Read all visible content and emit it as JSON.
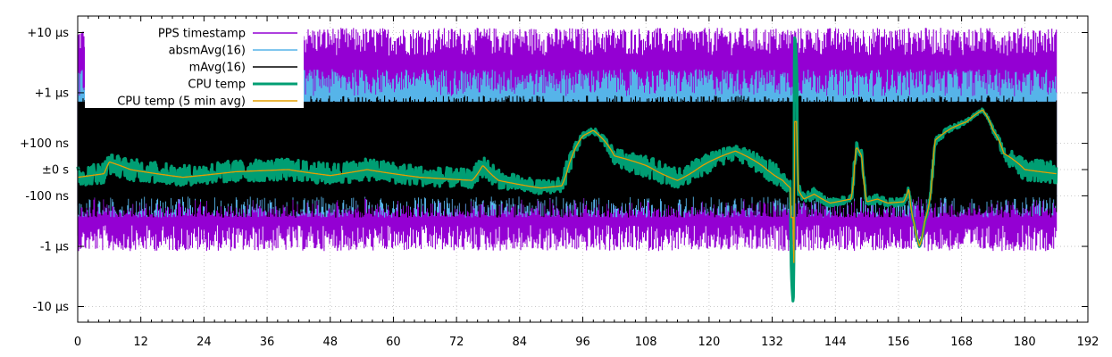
{
  "chart_data": {
    "type": "line",
    "title": "",
    "xlabel": "",
    "ylabel": "",
    "xlim": [
      0,
      192
    ],
    "x_ticks": [
      0,
      12,
      24,
      36,
      48,
      60,
      72,
      84,
      96,
      108,
      120,
      132,
      144,
      156,
      168,
      180,
      192
    ],
    "y_scale": "symmetric-log",
    "y_ticks": [
      {
        "label": "+10 µs",
        "value_ns": 10000
      },
      {
        "label": "+1 µs",
        "value_ns": 1000
      },
      {
        "label": "+100 ns",
        "value_ns": 100
      },
      {
        "label": "±0 s",
        "value_ns": 0
      },
      {
        "label": "-100 ns",
        "value_ns": -100
      },
      {
        "label": "-1 µs",
        "value_ns": -1000
      },
      {
        "label": "-10 µs",
        "value_ns": -10000
      }
    ],
    "grid": true,
    "legend_position": "top-left",
    "series": [
      {
        "name": "PPS timestamp",
        "color": "#9400d3",
        "style": "noise-band",
        "upper_ns": 12000,
        "lower_ns": -1200,
        "x_end": 186
      },
      {
        "name": "absmAvg(16)",
        "color": "#56b4e9",
        "style": "noise-band",
        "upper_ns": 2500,
        "lower_ns": -300,
        "x_end": 186
      },
      {
        "name": "mAvg(16)",
        "color": "#000000",
        "style": "noise-band",
        "upper_ns": 900,
        "lower_ns": -300,
        "x_end": 186
      },
      {
        "name": "CPU temp",
        "color": "#009e73",
        "style": "thick-line",
        "x_end": 186
      },
      {
        "name": "CPU temp (5 min avg)",
        "color": "#e69f00",
        "style": "line",
        "x_end": 186
      }
    ],
    "cpu_temp_profile": [
      [
        0,
        -20
      ],
      [
        5,
        -10
      ],
      [
        6,
        20
      ],
      [
        10,
        0
      ],
      [
        20,
        -20
      ],
      [
        30,
        -5
      ],
      [
        40,
        0
      ],
      [
        48,
        -15
      ],
      [
        55,
        0
      ],
      [
        65,
        -20
      ],
      [
        75,
        -30
      ],
      [
        77,
        10
      ],
      [
        80,
        -30
      ],
      [
        88,
        -60
      ],
      [
        92,
        -50
      ],
      [
        94,
        40
      ],
      [
        96,
        150
      ],
      [
        98,
        200
      ],
      [
        100,
        120
      ],
      [
        102,
        40
      ],
      [
        108,
        10
      ],
      [
        114,
        -30
      ],
      [
        120,
        20
      ],
      [
        125,
        60
      ],
      [
        130,
        10
      ],
      [
        134,
        -30
      ],
      [
        135.5,
        -60
      ],
      [
        136,
        -9000
      ],
      [
        136.3,
        9000
      ],
      [
        136.8,
        -60
      ],
      [
        138,
        -120
      ],
      [
        140,
        -90
      ],
      [
        143,
        -150
      ],
      [
        147,
        -120
      ],
      [
        148,
        80
      ],
      [
        149,
        40
      ],
      [
        150,
        -140
      ],
      [
        152,
        -120
      ],
      [
        154,
        -150
      ],
      [
        157,
        -140
      ],
      [
        158,
        -60
      ],
      [
        159,
        -400
      ],
      [
        160,
        -1000
      ],
      [
        161,
        -350
      ],
      [
        163,
        120
      ],
      [
        166,
        220
      ],
      [
        169,
        300
      ],
      [
        172,
        500
      ],
      [
        174,
        200
      ],
      [
        176,
        50
      ],
      [
        180,
        0
      ],
      [
        186,
        -10
      ]
    ]
  }
}
